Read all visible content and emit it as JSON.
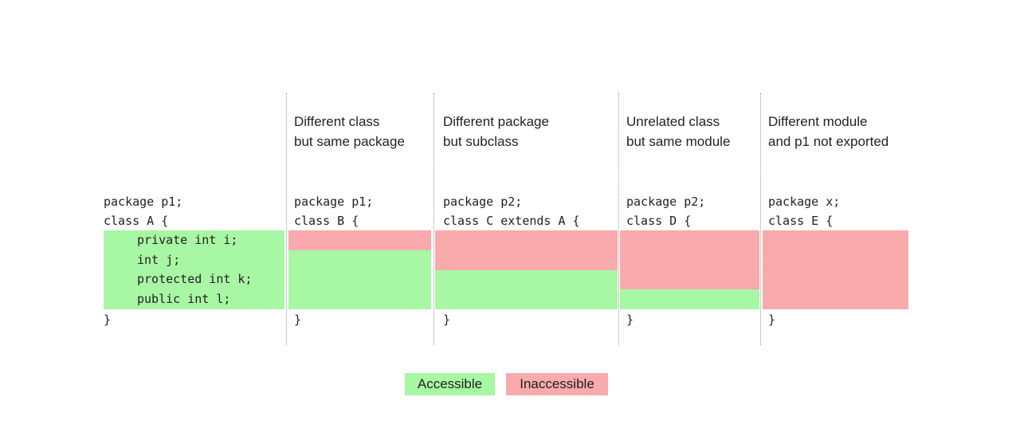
{
  "colors": {
    "accessible": "#a8f7a4",
    "inaccessible": "#f8aaad"
  },
  "owner": {
    "package_line": "package p1;",
    "class_line": "class A {",
    "members": [
      "private int i;",
      "int j;",
      "protected int k;",
      "public int l;"
    ],
    "close": "}"
  },
  "columns": [
    {
      "header": [
        "Different class",
        "but same package"
      ],
      "package_line": "package p1;",
      "class_line": "class B {",
      "close": "}",
      "accessible_members": 3
    },
    {
      "header": [
        "Different package",
        "but subclass"
      ],
      "package_line": "package p2;",
      "class_line": "class C extends A {",
      "close": "}",
      "accessible_members": 2
    },
    {
      "header": [
        "Unrelated class",
        "but same module"
      ],
      "package_line": "package p2;",
      "class_line": "class D {",
      "close": "}",
      "accessible_members": 1
    },
    {
      "header": [
        "Different module",
        "and p1 not exported"
      ],
      "package_line": "package x;",
      "class_line": "class E {",
      "close": "}",
      "accessible_members": 0
    }
  ],
  "legend": {
    "accessible": "Accessible",
    "inaccessible": "Inaccessible"
  }
}
